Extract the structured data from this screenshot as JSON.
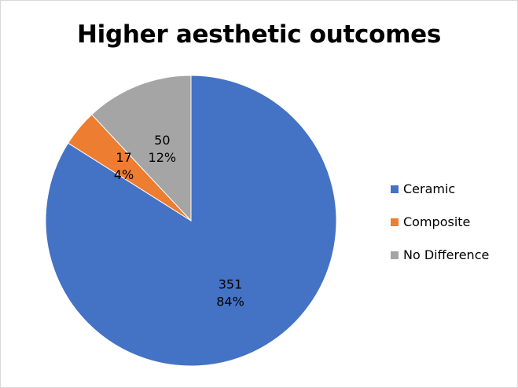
{
  "chart_data": {
    "type": "pie",
    "title": "Higher aesthetic outcomes",
    "categories": [
      "Ceramic",
      "Composite",
      "No Difference"
    ],
    "values": [
      351,
      17,
      50
    ],
    "percent_labels": [
      "84%",
      "4%",
      "12%"
    ],
    "colors": [
      "#4472c4",
      "#ed7d31",
      "#a5a5a5"
    ],
    "legend_position": "right",
    "start_angle_deg": 0,
    "direction": "clockwise"
  }
}
